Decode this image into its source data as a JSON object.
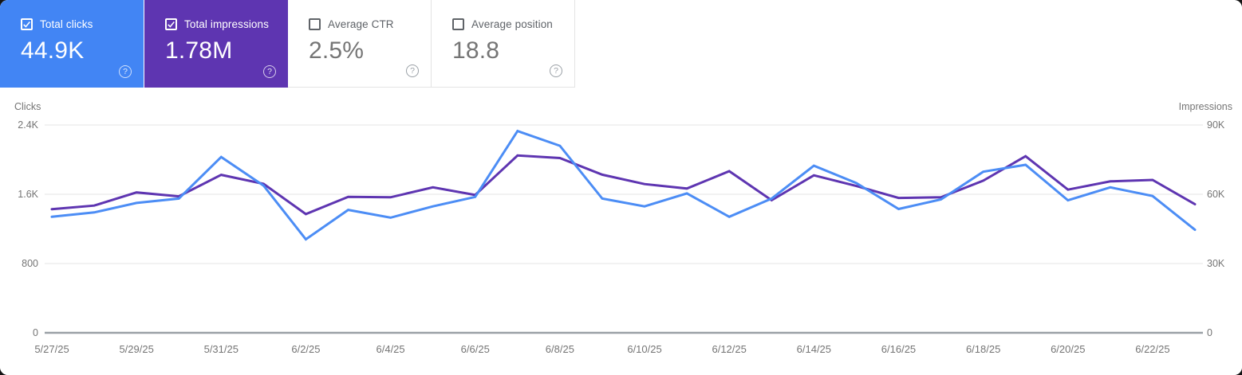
{
  "icons": {
    "help": "?",
    "check": "✓"
  },
  "cards": [
    {
      "label": "Total clicks",
      "value": "44.9K",
      "checked": true,
      "bg": "#4285f4"
    },
    {
      "label": "Total impressions",
      "value": "1.78M",
      "checked": true,
      "bg": "#5e35b1"
    },
    {
      "label": "Average CTR",
      "value": "2.5%",
      "checked": false,
      "bg": "#ffffff"
    },
    {
      "label": "Average position",
      "value": "18.8",
      "checked": false,
      "bg": "#ffffff"
    }
  ],
  "chart_data": {
    "type": "line",
    "x": [
      "5/27/25",
      "5/28/25",
      "5/29/25",
      "5/30/25",
      "5/31/25",
      "6/1/25",
      "6/2/25",
      "6/3/25",
      "6/4/25",
      "6/5/25",
      "6/6/25",
      "6/7/25",
      "6/8/25",
      "6/9/25",
      "6/10/25",
      "6/11/25",
      "6/12/25",
      "6/13/25",
      "6/14/25",
      "6/15/25",
      "6/16/25",
      "6/17/25",
      "6/18/25",
      "6/19/25",
      "6/20/25",
      "6/21/25",
      "6/22/25",
      "6/23/25"
    ],
    "x_tick_labels": [
      "5/27/25",
      "5/29/25",
      "5/31/25",
      "6/2/25",
      "6/4/25",
      "6/6/25",
      "6/8/25",
      "6/10/25",
      "6/12/25",
      "6/14/25",
      "6/16/25",
      "6/18/25",
      "6/20/25",
      "6/22/25"
    ],
    "series": [
      {
        "name": "Clicks",
        "axis": "left",
        "color": "#4c8df5",
        "values": [
          1340,
          1390,
          1500,
          1550,
          2030,
          1700,
          1080,
          1420,
          1330,
          1460,
          1570,
          2330,
          2160,
          1550,
          1460,
          1610,
          1340,
          1550,
          1930,
          1730,
          1430,
          1540,
          1860,
          1940,
          1530,
          1680,
          1580,
          1190
        ]
      },
      {
        "name": "Impressions",
        "axis": "right",
        "color": "#5e35b1",
        "values": [
          53500,
          55100,
          60800,
          59100,
          68400,
          64500,
          51400,
          58900,
          58700,
          63000,
          59700,
          76800,
          75700,
          68500,
          64400,
          62500,
          70000,
          57400,
          68200,
          63600,
          58400,
          58700,
          65900,
          76500,
          62000,
          65600,
          66200,
          55700
        ]
      }
    ],
    "left_axis": {
      "label": "Clicks",
      "ticks": [
        "2.4K",
        "1.6K",
        "800",
        "0"
      ],
      "range": [
        0,
        2400
      ]
    },
    "right_axis": {
      "label": "Impressions",
      "ticks": [
        "90K",
        "60K",
        "30K",
        "0"
      ],
      "range": [
        0,
        90000
      ]
    },
    "grid": "horizontal",
    "legend": "none"
  }
}
